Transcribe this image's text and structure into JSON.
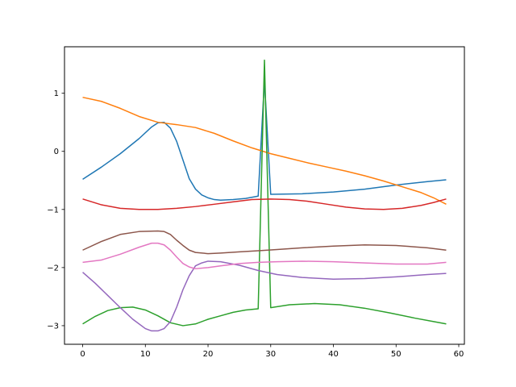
{
  "chart_data": {
    "type": "line",
    "title": "",
    "xlabel": "",
    "ylabel": "",
    "xlim": [
      -2.9,
      60.9
    ],
    "ylim": [
      -3.32,
      1.8
    ],
    "xticks": [
      0,
      10,
      20,
      30,
      40,
      50,
      60
    ],
    "yticks": [
      -3,
      -2,
      -1,
      0,
      1
    ],
    "grid": false,
    "series": [
      {
        "color": "#1f77b4",
        "x": [
          0,
          3,
          6,
          9,
          11,
          12,
          13,
          14,
          15,
          16,
          17,
          18,
          19,
          20,
          21,
          22,
          24,
          26,
          28,
          29,
          30,
          35,
          40,
          45,
          50,
          55,
          58
        ],
        "y": [
          -0.48,
          -0.27,
          -0.04,
          0.22,
          0.42,
          0.49,
          0.5,
          0.4,
          0.17,
          -0.15,
          -0.47,
          -0.65,
          -0.75,
          -0.8,
          -0.83,
          -0.84,
          -0.83,
          -0.81,
          -0.77,
          1.22,
          -0.74,
          -0.73,
          -0.7,
          -0.65,
          -0.58,
          -0.52,
          -0.49
        ]
      },
      {
        "color": "#ff7f0e",
        "x": [
          0,
          3,
          6,
          9,
          12,
          15,
          18,
          21,
          24,
          27,
          30,
          33,
          36,
          39,
          42,
          45,
          48,
          51,
          54,
          56,
          58
        ],
        "y": [
          0.93,
          0.86,
          0.74,
          0.6,
          0.5,
          0.46,
          0.41,
          0.31,
          0.18,
          0.06,
          -0.04,
          -0.12,
          -0.2,
          -0.27,
          -0.34,
          -0.42,
          -0.51,
          -0.61,
          -0.71,
          -0.8,
          -0.91
        ]
      },
      {
        "color": "#2ca02c",
        "x": [
          0,
          2,
          4,
          6,
          8,
          10,
          12,
          14,
          16,
          18,
          20,
          22,
          24,
          26,
          28,
          29,
          30,
          33,
          37,
          41,
          45,
          49,
          53,
          56,
          58
        ],
        "y": [
          -2.97,
          -2.84,
          -2.74,
          -2.69,
          -2.68,
          -2.73,
          -2.83,
          -2.95,
          -3.0,
          -2.97,
          -2.89,
          -2.83,
          -2.77,
          -2.73,
          -2.71,
          1.57,
          -2.69,
          -2.64,
          -2.62,
          -2.64,
          -2.7,
          -2.78,
          -2.87,
          -2.93,
          -2.97
        ]
      },
      {
        "color": "#d62728",
        "x": [
          0,
          3,
          6,
          9,
          12,
          15,
          18,
          21,
          24,
          27,
          30,
          33,
          36,
          39,
          42,
          45,
          48,
          51,
          54,
          56,
          58
        ],
        "y": [
          -0.82,
          -0.92,
          -0.98,
          -1.0,
          -1.0,
          -0.98,
          -0.95,
          -0.91,
          -0.87,
          -0.83,
          -0.82,
          -0.83,
          -0.86,
          -0.91,
          -0.96,
          -0.99,
          -1.0,
          -0.98,
          -0.93,
          -0.88,
          -0.82
        ]
      },
      {
        "color": "#9467bd",
        "x": [
          0,
          2,
          4,
          6,
          8,
          10,
          11,
          12,
          13,
          14,
          15,
          16,
          17,
          18,
          19,
          20,
          22,
          25,
          28,
          31,
          35,
          40,
          45,
          50,
          55,
          58
        ],
        "y": [
          -2.08,
          -2.27,
          -2.48,
          -2.69,
          -2.89,
          -3.05,
          -3.09,
          -3.09,
          -3.05,
          -2.93,
          -2.68,
          -2.38,
          -2.14,
          -1.97,
          -1.92,
          -1.89,
          -1.9,
          -1.96,
          -2.05,
          -2.12,
          -2.17,
          -2.2,
          -2.19,
          -2.16,
          -2.12,
          -2.1
        ]
      },
      {
        "color": "#8c564b",
        "x": [
          0,
          3,
          6,
          9,
          12,
          13,
          14,
          15,
          16,
          17,
          18,
          20,
          22,
          25,
          28,
          31,
          35,
          40,
          45,
          50,
          55,
          58
        ],
        "y": [
          -1.7,
          -1.55,
          -1.43,
          -1.38,
          -1.37,
          -1.38,
          -1.43,
          -1.53,
          -1.62,
          -1.7,
          -1.74,
          -1.76,
          -1.75,
          -1.73,
          -1.71,
          -1.69,
          -1.66,
          -1.63,
          -1.61,
          -1.62,
          -1.66,
          -1.7
        ]
      },
      {
        "color": "#e377c2",
        "x": [
          0,
          3,
          6,
          9,
          11,
          12,
          13,
          14,
          15,
          16,
          17,
          18,
          20,
          22,
          25,
          28,
          31,
          35,
          40,
          45,
          50,
          55,
          58
        ],
        "y": [
          -1.91,
          -1.87,
          -1.77,
          -1.65,
          -1.58,
          -1.58,
          -1.61,
          -1.7,
          -1.82,
          -1.93,
          -1.99,
          -2.02,
          -2.0,
          -1.97,
          -1.93,
          -1.91,
          -1.9,
          -1.89,
          -1.9,
          -1.92,
          -1.94,
          -1.94,
          -1.91
        ]
      }
    ]
  }
}
